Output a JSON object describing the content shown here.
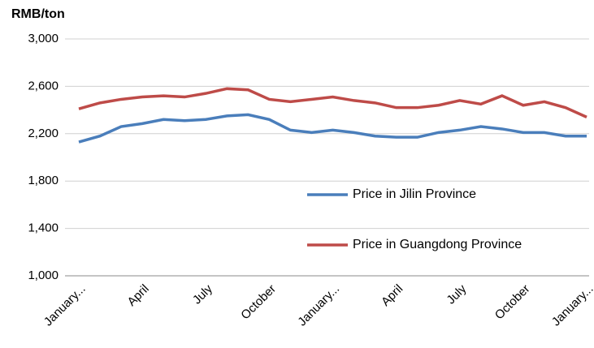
{
  "chart_data": {
    "type": "line",
    "y_axis_label": "RMB/ton",
    "categories": [
      "January...",
      null,
      null,
      "April",
      null,
      null,
      "July",
      null,
      null,
      "October",
      null,
      null,
      "January...",
      null,
      null,
      "April",
      null,
      null,
      "July",
      null,
      null,
      "October",
      null,
      null,
      "January..."
    ],
    "series": [
      {
        "name": "Price in Jilin Province",
        "color": "#4a7ebb",
        "values": [
          2130,
          2180,
          2260,
          2285,
          2320,
          2310,
          2320,
          2350,
          2360,
          2320,
          2230,
          2210,
          2230,
          2210,
          2180,
          2170,
          2170,
          2210,
          2230,
          2260,
          2240,
          2210,
          2210,
          2180,
          2180
        ]
      },
      {
        "name": "Price in Guangdong Province",
        "color": "#be4b48",
        "values": [
          2410,
          2460,
          2490,
          2510,
          2520,
          2510,
          2540,
          2580,
          2570,
          2490,
          2470,
          2490,
          2510,
          2480,
          2460,
          2420,
          2420,
          2440,
          2480,
          2450,
          2520,
          2440,
          2470,
          2420,
          2340
        ]
      }
    ],
    "ylim": [
      1000,
      3000
    ],
    "yticks": [
      {
        "value": 1000,
        "label": "1,000"
      },
      {
        "value": 1400,
        "label": "1,400"
      },
      {
        "value": 1800,
        "label": "1,800"
      },
      {
        "value": 2200,
        "label": "2,200"
      },
      {
        "value": 2600,
        "label": "2,600"
      },
      {
        "value": 3000,
        "label": "3,000"
      }
    ],
    "grid": true,
    "legend": "inside-right"
  }
}
